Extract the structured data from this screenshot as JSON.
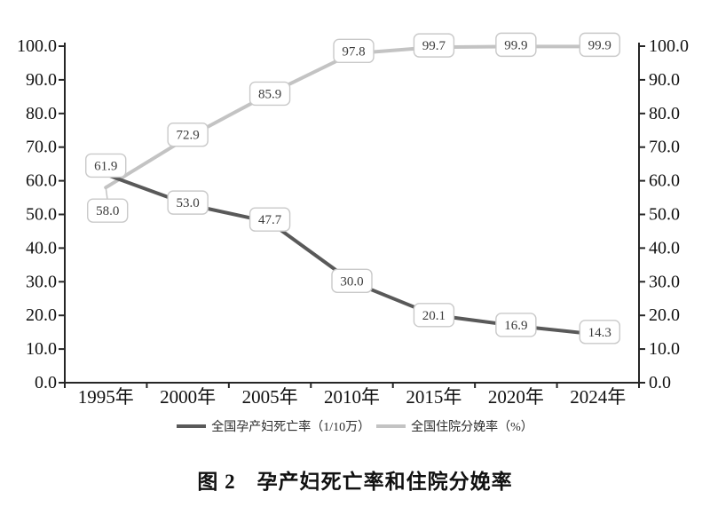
{
  "page": {
    "background": "#ffffff"
  },
  "chart_data": {
    "type": "line",
    "title": "图 2　孕产妇死亡率和住院分娩率",
    "categories": [
      "1995年",
      "2000年",
      "2005年",
      "2010年",
      "2015年",
      "2020年",
      "2024年"
    ],
    "series": [
      {
        "name": "全国孕产妇死亡率（1/10万）",
        "color": "#595959",
        "values": [
          61.9,
          53.0,
          47.7,
          30.0,
          20.1,
          16.9,
          14.3
        ],
        "label_offsets": [
          [
            0,
            -10
          ],
          [
            0,
            -2
          ],
          [
            0,
            -3
          ],
          [
            0,
            -1
          ],
          [
            0,
            0
          ],
          [
            0,
            -1
          ],
          [
            2,
            -3
          ]
        ],
        "leader_points": []
      },
      {
        "name": "全国住院分娩率（%）",
        "color": "#c3c3c3",
        "values": [
          58.0,
          72.9,
          85.9,
          97.8,
          99.7,
          99.9,
          99.9
        ],
        "label_offsets": [
          [
            2,
            26
          ],
          [
            0,
            -3
          ],
          [
            0,
            0
          ],
          [
            2,
            -3
          ],
          [
            0,
            -2
          ],
          [
            0,
            -2
          ],
          [
            2,
            -2
          ]
        ],
        "leader_points": [
          0
        ]
      }
    ],
    "ylim": [
      0,
      100
    ],
    "ytick_step": 10,
    "ytick_decimals": 1,
    "data_label_decimals": 1,
    "axes": {
      "left": true,
      "right": true,
      "bottom": true,
      "top": false
    },
    "grid": false,
    "legend_position": "bottom",
    "data_labels": true,
    "label_box": {
      "fill": "#ffffff",
      "stroke": "#c9c9c9",
      "text_color": "#3b3b3b"
    },
    "axis_color": "#262626",
    "leader_color": "#c3c3c3"
  }
}
